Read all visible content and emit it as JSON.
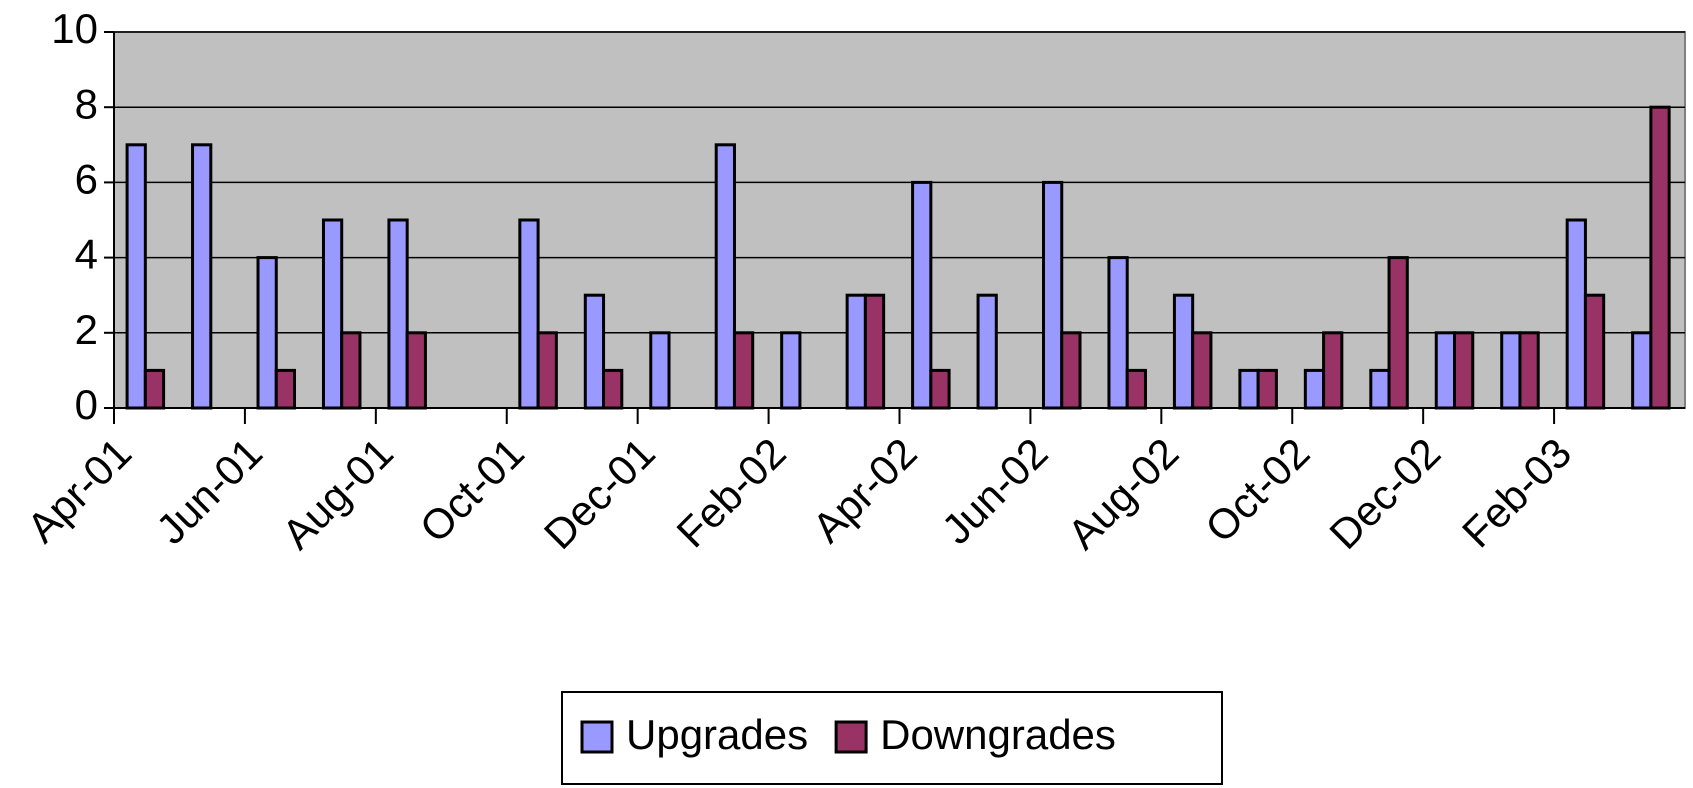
{
  "chart_data": {
    "type": "bar",
    "categories": [
      "Apr-01",
      null,
      "Jun-01",
      null,
      "Aug-01",
      null,
      "Oct-01",
      null,
      "Dec-01",
      null,
      "Feb-02",
      null,
      "Apr-02",
      null,
      "Jun-02",
      null,
      "Aug-02",
      null,
      "Oct-02",
      null,
      "Dec-02",
      null,
      "Feb-03",
      null
    ],
    "series": [
      {
        "name": "Upgrades",
        "color": "#9999ff",
        "values": [
          7,
          7,
          4,
          5,
          5,
          0,
          5,
          3,
          2,
          7,
          2,
          3,
          6,
          3,
          6,
          4,
          3,
          1,
          1,
          1,
          2,
          2,
          5,
          2
        ]
      },
      {
        "name": "Downgrades",
        "color": "#993366",
        "values": [
          1,
          0,
          1,
          2,
          2,
          0,
          2,
          1,
          0,
          2,
          0,
          3,
          1,
          0,
          2,
          1,
          2,
          1,
          2,
          4,
          2,
          2,
          3,
          8
        ]
      }
    ],
    "ylim": [
      0,
      10
    ],
    "yticks": [
      0,
      2,
      4,
      6,
      8,
      10
    ],
    "grid": true,
    "legend": "bottom"
  }
}
